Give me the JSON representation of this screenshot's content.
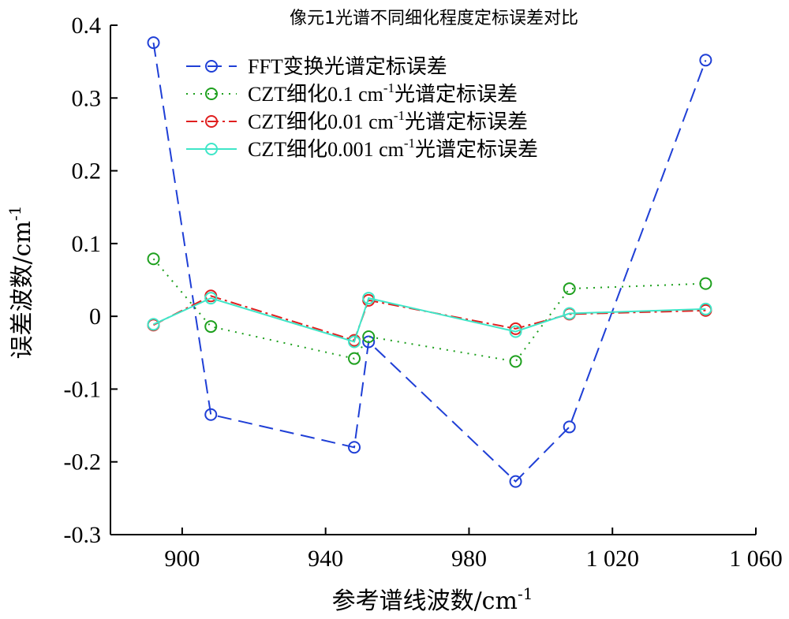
{
  "chart_data": {
    "type": "line",
    "title": "像元1光谱不同细化程度定标误差对比",
    "xlabel": "参考谱线波数/cm",
    "xlabel_sup": "-1",
    "ylabel": "误差波数/cm",
    "ylabel_sup": "-1",
    "xlim": [
      880,
      1060
    ],
    "ylim": [
      -0.3,
      0.4
    ],
    "xticks": [
      {
        "value": 900,
        "label": "900"
      },
      {
        "value": 940,
        "label": "940"
      },
      {
        "value": 980,
        "label": "980"
      },
      {
        "value": 1020,
        "label": "1 020"
      },
      {
        "value": 1060,
        "label": "1 060"
      }
    ],
    "yticks": [
      {
        "value": 0.4,
        "label": "0.4"
      },
      {
        "value": 0.3,
        "label": "0.3"
      },
      {
        "value": 0.2,
        "label": "0.2"
      },
      {
        "value": 0.1,
        "label": "0.1"
      },
      {
        "value": 0,
        "label": "0"
      },
      {
        "value": -0.1,
        "label": "-0.1"
      },
      {
        "value": -0.2,
        "label": "-0.2"
      },
      {
        "value": -0.3,
        "label": "-0.3"
      }
    ],
    "grid": false,
    "legend_position": "top-left",
    "series": [
      {
        "name": "FFT变换光谱定标误差",
        "name_parts": [
          "FFT变换光谱定标误差"
        ],
        "color": "#1f3fd6",
        "dash": "18,9",
        "marker": "circle",
        "points": [
          [
            892,
            0.376
          ],
          [
            908,
            -0.135
          ],
          [
            948,
            -0.18
          ],
          [
            952,
            -0.035
          ],
          [
            993,
            -0.227
          ],
          [
            1008,
            -0.152
          ],
          [
            1046,
            0.352
          ]
        ]
      },
      {
        "name": "CZT细化0.1 cm-1光谱定标误差",
        "name_parts": [
          "CZT细化0.1 cm",
          "-1",
          "光谱定标误差"
        ],
        "color": "#1ea01e",
        "dash": "2,7",
        "marker": "circle",
        "points": [
          [
            892,
            0.079
          ],
          [
            908,
            -0.014
          ],
          [
            948,
            -0.058
          ],
          [
            952,
            -0.028
          ],
          [
            993,
            -0.062
          ],
          [
            1008,
            0.038
          ],
          [
            1046,
            0.045
          ]
        ]
      },
      {
        "name": "CZT细化0.01 cm-1光谱定标误差",
        "name_parts": [
          "CZT细化0.01 cm",
          "-1",
          "光谱定标误差"
        ],
        "color": "#e01f1f",
        "dash": "14,5,3,5",
        "marker": "circle",
        "points": [
          [
            892,
            -0.012
          ],
          [
            908,
            0.028
          ],
          [
            948,
            -0.033
          ],
          [
            952,
            0.022
          ],
          [
            993,
            -0.017
          ],
          [
            1008,
            0.003
          ],
          [
            1046,
            0.008
          ]
        ]
      },
      {
        "name": "CZT细化0.001 cm-1光谱定标误差",
        "name_parts": [
          "CZT细化0.001 cm",
          "-1",
          "光谱定标误差"
        ],
        "color": "#3fe6c8",
        "dash": "",
        "marker": "circle",
        "points": [
          [
            892,
            -0.011
          ],
          [
            908,
            0.025
          ],
          [
            948,
            -0.035
          ],
          [
            952,
            0.025
          ],
          [
            993,
            -0.021
          ],
          [
            1008,
            0.004
          ],
          [
            1046,
            0.01
          ]
        ]
      }
    ]
  }
}
